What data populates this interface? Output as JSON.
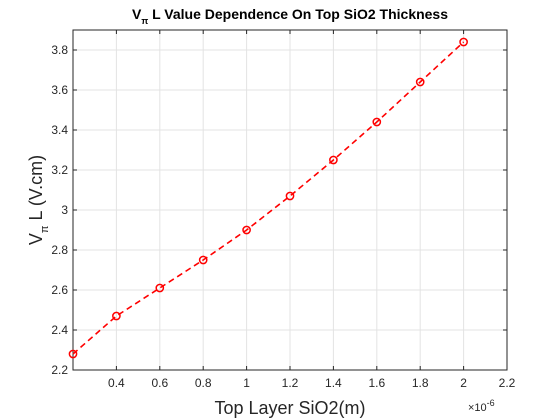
{
  "chart_data": {
    "type": "line",
    "title": {
      "prefix": "V",
      "subscript": "π",
      "suffix": " L Value Dependence On Top SiO2 Thickness"
    },
    "xlabel": "Top Layer SiO2(m)",
    "ylabel": {
      "prefix": "V",
      "subscript": "π",
      "suffix": " L (V.cm)"
    },
    "x_exponent": {
      "base": "×10",
      "power": "-6"
    },
    "xlim": [
      0.2,
      2.2
    ],
    "ylim": [
      2.2,
      3.9
    ],
    "x_ticks": [
      0.4,
      0.6,
      0.8,
      1,
      1.2,
      1.4,
      1.6,
      1.8,
      2,
      2.2
    ],
    "x_tick_labels": [
      "0.4",
      "0.6",
      "0.8",
      "1",
      "1.2",
      "1.4",
      "1.6",
      "1.8",
      "2",
      "2.2"
    ],
    "y_ticks": [
      2.2,
      2.4,
      2.6,
      2.8,
      3.0,
      3.2,
      3.4,
      3.6,
      3.8
    ],
    "y_tick_labels": [
      "2.2",
      "2.4",
      "2.6",
      "2.8",
      "3",
      "3.2",
      "3.4",
      "3.6",
      "3.8"
    ],
    "grid": true,
    "series": [
      {
        "name": "VπL",
        "color": "#ff0000",
        "line_style": "dashed",
        "marker": "circle",
        "x": [
          0.2,
          0.4,
          0.6,
          0.8,
          1.0,
          1.2,
          1.4,
          1.6,
          1.8,
          2.0
        ],
        "values": [
          2.28,
          2.47,
          2.61,
          2.75,
          2.9,
          3.07,
          3.25,
          3.44,
          3.64,
          3.84
        ]
      }
    ]
  }
}
